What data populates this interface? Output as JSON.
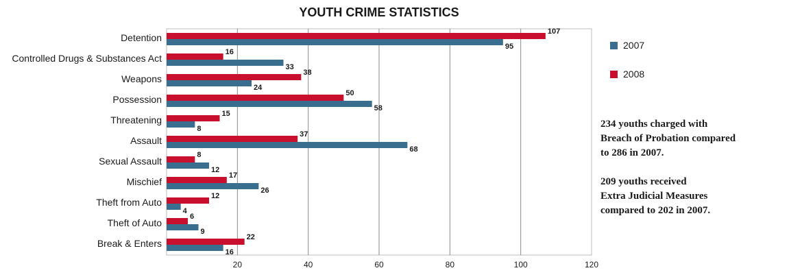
{
  "chart_data": {
    "type": "bar",
    "orientation": "horizontal",
    "title": "YOUTH CRIME STATISTICS",
    "categories": [
      "Detention",
      "Controlled Drugs & Substances Act",
      "Weapons",
      "Possession",
      "Threatening",
      "Assault",
      "Sexual Assault",
      "Mischief",
      "Theft from Auto",
      "Theft of Auto",
      "Break & Enters"
    ],
    "series": [
      {
        "name": "2008",
        "color": "#c8102e",
        "values": [
          107,
          16,
          38,
          50,
          15,
          37,
          8,
          17,
          12,
          6,
          22
        ]
      },
      {
        "name": "2007",
        "color": "#3a6e8f",
        "values": [
          95,
          33,
          24,
          58,
          8,
          68,
          12,
          26,
          4,
          9,
          16
        ]
      }
    ],
    "xlim": [
      0,
      120
    ],
    "x_ticks": [
      20,
      40,
      60,
      80,
      100,
      120
    ],
    "grid": true,
    "legend": {
      "position": "right",
      "entries": [
        {
          "name": "2007",
          "color": "#3a6e8f"
        },
        {
          "name": "2008",
          "color": "#c8102e"
        }
      ]
    }
  },
  "notes": [
    "234 youths charged with\nBreach of Probation compared\nto 286 in 2007.",
    "209 youths received\nExtra Judicial Measures\ncompared to 202 in 2007."
  ]
}
